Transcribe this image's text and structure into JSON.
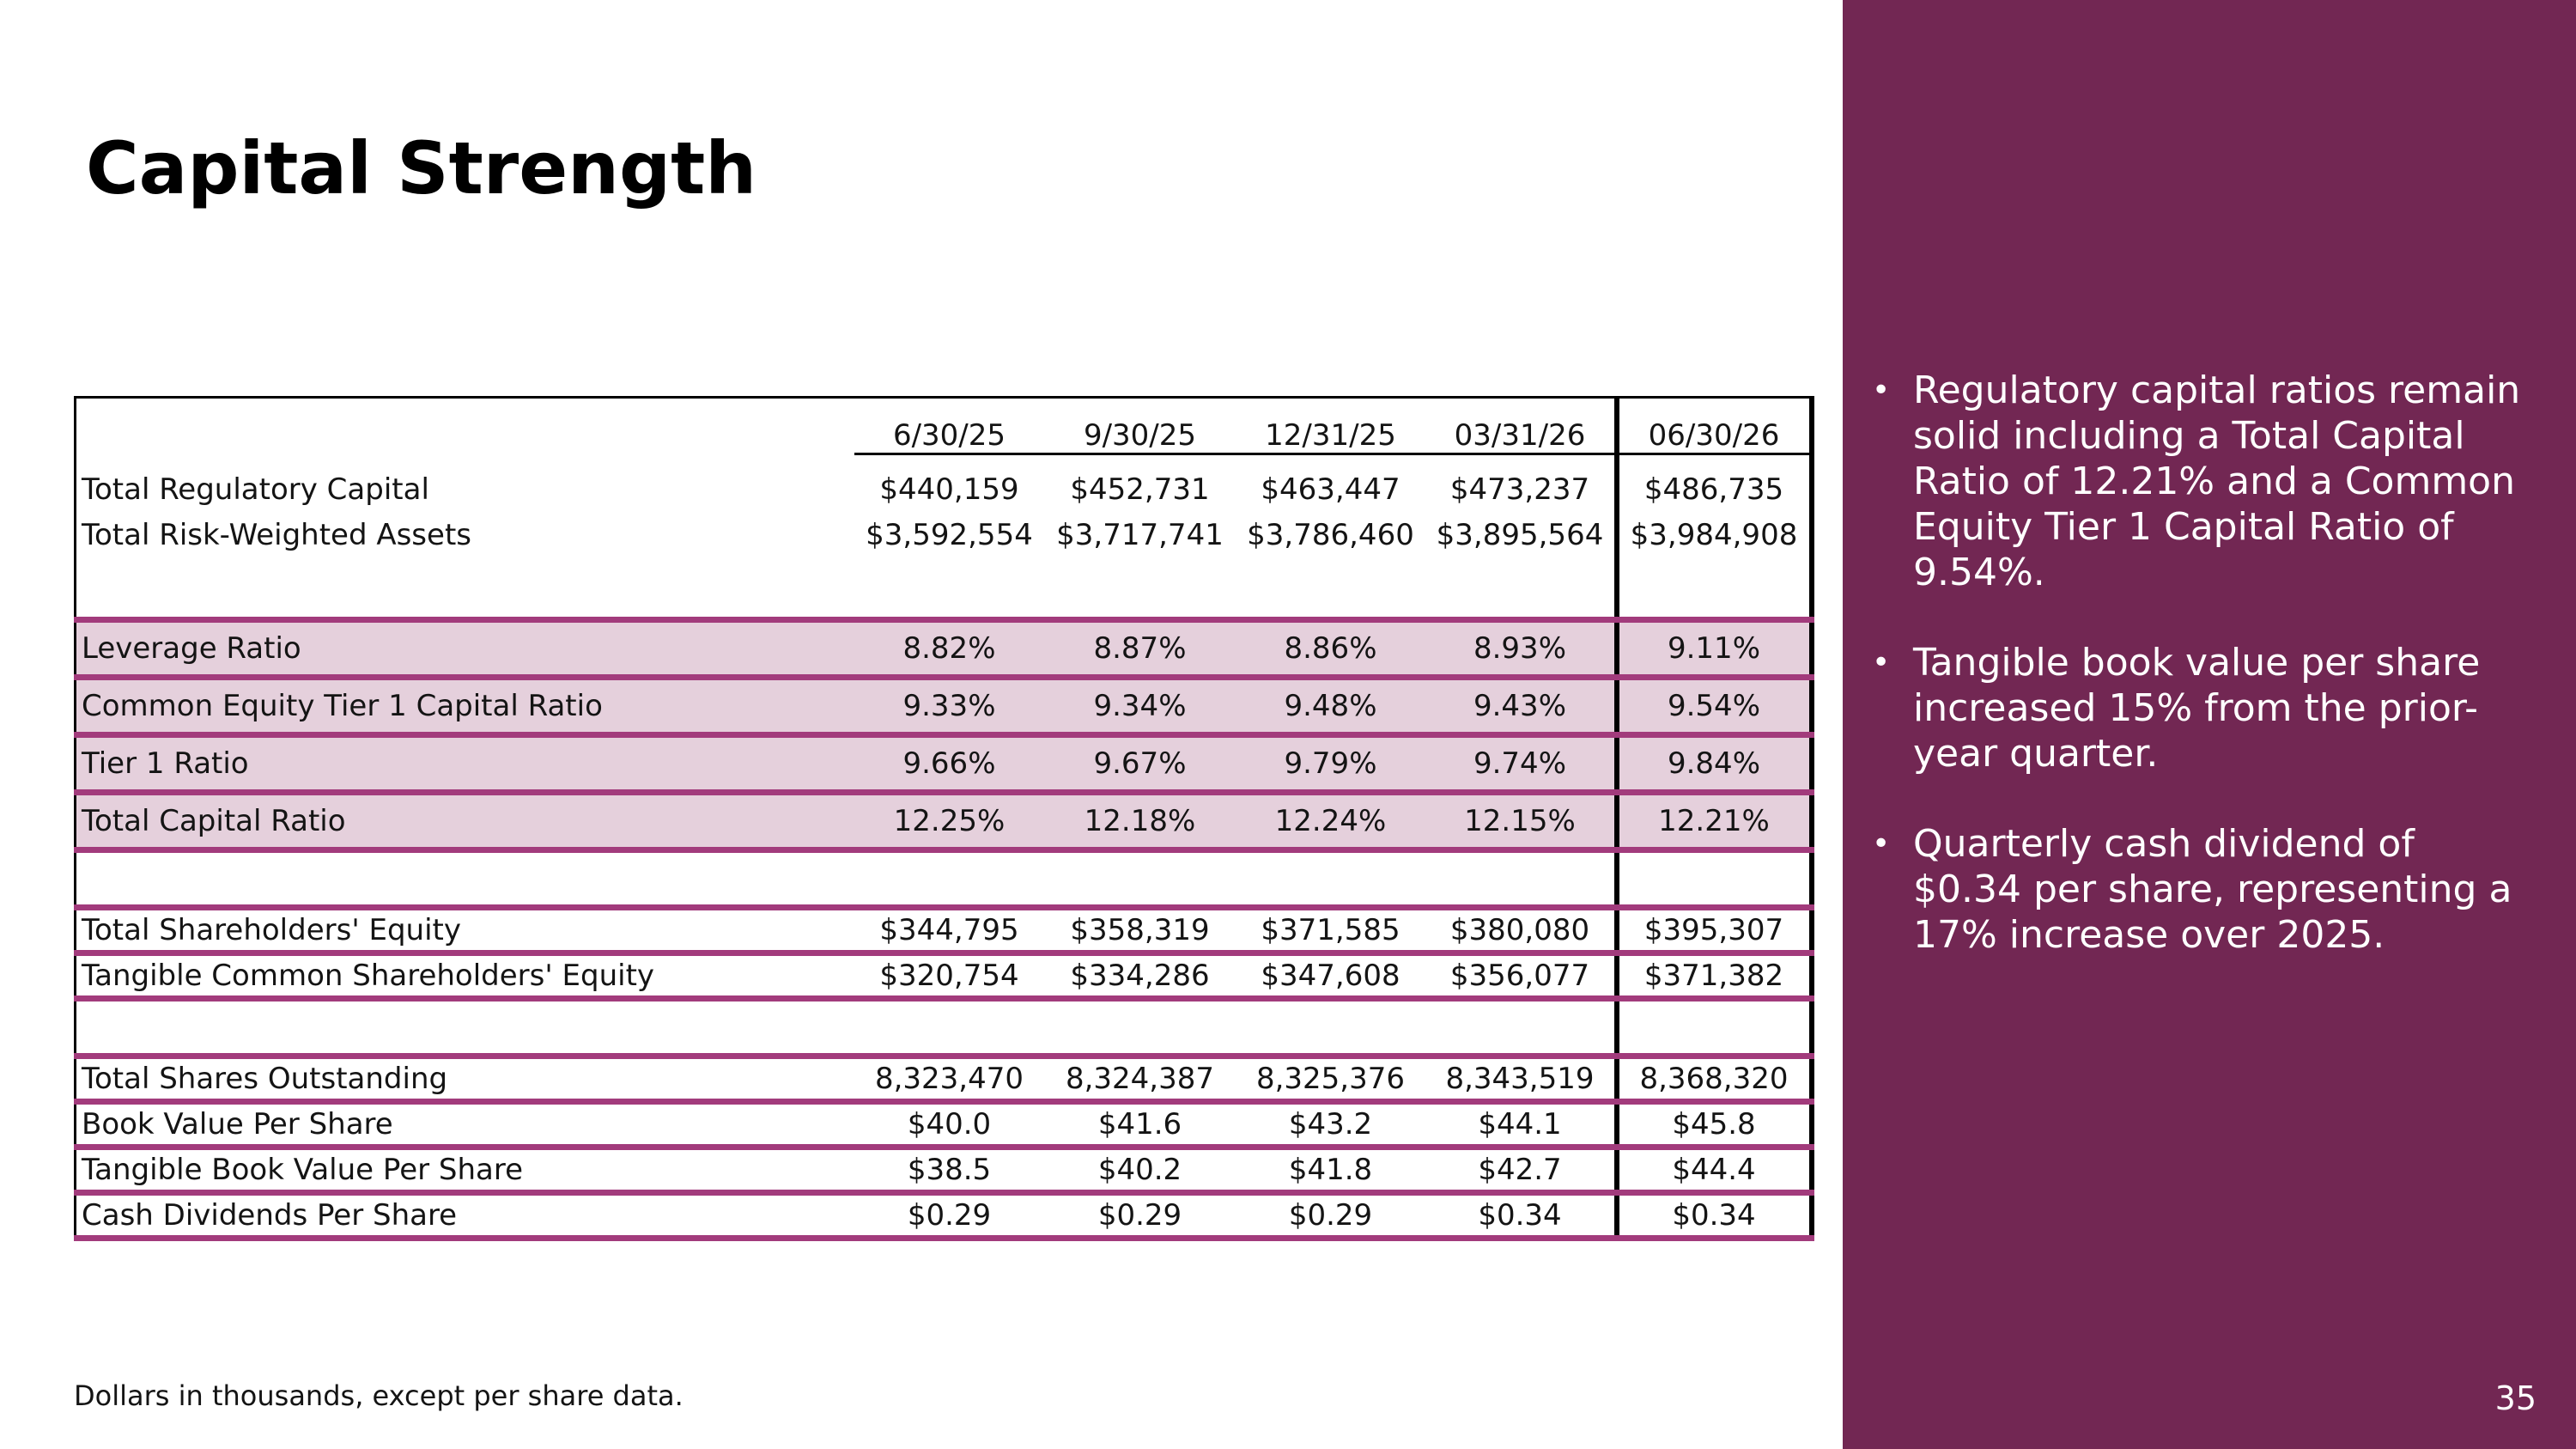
{
  "title": "Capital Strength",
  "table": {
    "columns": [
      "6/30/25",
      "9/30/25",
      "12/31/25",
      "03/31/26",
      "06/30/26"
    ],
    "groups": [
      {
        "style": "plain",
        "rows": [
          {
            "label": "Total Regulatory Capital",
            "values": [
              "$440,159",
              "$452,731",
              "$463,447",
              "$473,237",
              "$486,735"
            ]
          },
          {
            "label": "Total Risk-Weighted Assets",
            "values": [
              "$3,592,554",
              "$3,717,741",
              "$3,786,460",
              "$3,895,564",
              "$3,984,908"
            ]
          }
        ]
      },
      {
        "style": "highlight",
        "rows": [
          {
            "label": "Leverage Ratio",
            "values": [
              "8.82%",
              "8.87%",
              "8.86%",
              "8.93%",
              "9.11%"
            ]
          },
          {
            "label": "Common Equity Tier 1 Capital Ratio",
            "values": [
              "9.33%",
              "9.34%",
              "9.48%",
              "9.43%",
              "9.54%"
            ]
          },
          {
            "label": "Tier 1 Ratio",
            "values": [
              "9.66%",
              "9.67%",
              "9.79%",
              "9.74%",
              "9.84%"
            ]
          },
          {
            "label": "Total Capital Ratio",
            "values": [
              "12.25%",
              "12.18%",
              "12.24%",
              "12.15%",
              "12.21%"
            ]
          }
        ]
      },
      {
        "style": "ruled",
        "rows": [
          {
            "label": "Total Shareholders' Equity",
            "values": [
              "$344,795",
              "$358,319",
              "$371,585",
              "$380,080",
              "$395,307"
            ]
          },
          {
            "label": "Tangible Common Shareholders' Equity",
            "values": [
              "$320,754",
              "$334,286",
              "$347,608",
              "$356,077",
              "$371,382"
            ]
          }
        ]
      },
      {
        "style": "ruled",
        "rows": [
          {
            "label": "Total Shares Outstanding",
            "values": [
              "8,323,470",
              "8,324,387",
              "8,325,376",
              "8,343,519",
              "8,368,320"
            ]
          },
          {
            "label": "Book Value Per Share",
            "values": [
              "$40.0",
              "$41.6",
              "$43.2",
              "$44.1",
              "$45.8"
            ]
          },
          {
            "label": "Tangible Book Value Per Share",
            "values": [
              "$38.5",
              "$40.2",
              "$41.8",
              "$42.7",
              "$44.4"
            ]
          },
          {
            "label": "Cash Dividends Per Share",
            "values": [
              "$0.29",
              "$0.29",
              "$0.29",
              "$0.34",
              "$0.34"
            ]
          }
        ]
      }
    ]
  },
  "footnote": "Dollars in thousands, except per share data.",
  "bullets": [
    "Regulatory capital ratios remain solid including a Total Capital Ratio of 12.21% and a Common Equity Tier 1 Capital Ratio of 9.54%.",
    "Tangible book value per share increased 15% from the prior-year quarter.",
    "Quarterly cash dividend of $0.34 per share, representing a 17% increase over 2025."
  ],
  "page_number": "35",
  "colors": {
    "panel": "#722753",
    "highlight_fill": "#e5d0dc",
    "rule": "#a23b7c"
  }
}
